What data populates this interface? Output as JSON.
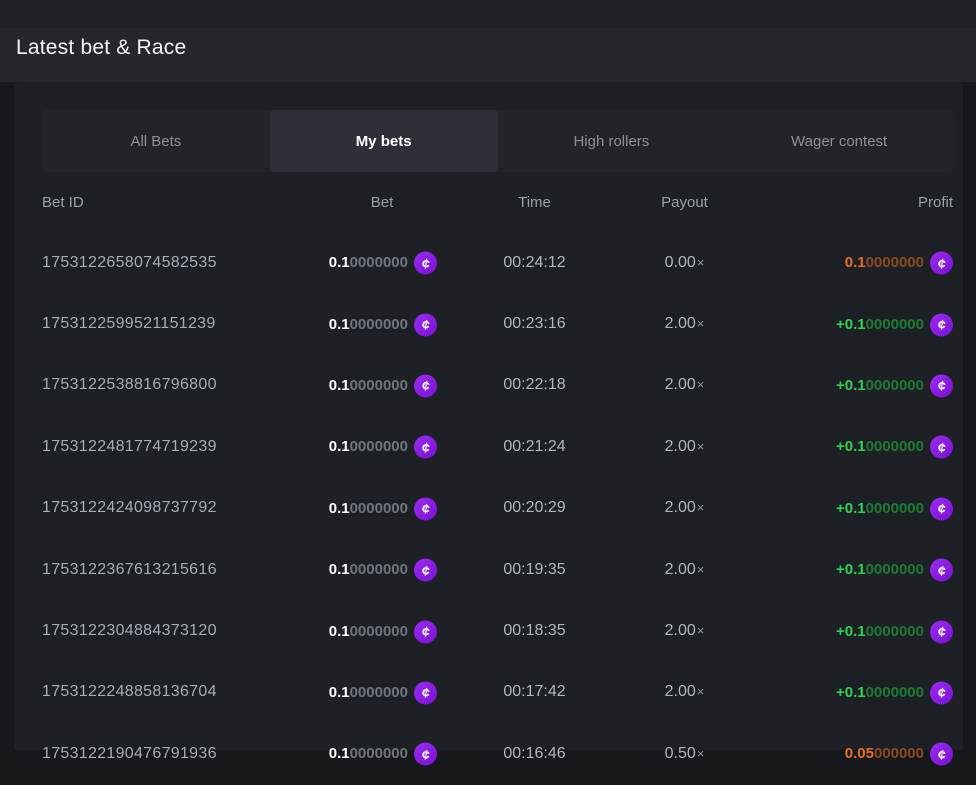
{
  "page": {
    "title": "Latest bet & Race"
  },
  "tabs": [
    {
      "label": "All Bets",
      "active": false
    },
    {
      "label": "My bets",
      "active": true
    },
    {
      "label": "High rollers",
      "active": false
    },
    {
      "label": "Wager contest",
      "active": false
    }
  ],
  "symbols": {
    "coin": "¢",
    "multiplier": "×"
  },
  "colors": {
    "coin_purple": "#8716dc",
    "win_green": "#31d14f",
    "win_green_dim": "#1e7c32",
    "loss_orange": "#e96d26",
    "loss_orange_dim": "#8c4a20",
    "card_bg": "#1d2024",
    "tabbar_bg": "#22242a",
    "active_tab_bg": "#2d3036"
  },
  "table": {
    "columns": [
      "Bet ID",
      "Bet",
      "Time",
      "Payout",
      "Profit"
    ],
    "rows": [
      {
        "bet_id": "1753122658074582535",
        "bet_bold": "0.1",
        "bet_dim": "0000000",
        "time": "00:24:12",
        "payout": "0.00",
        "profit_bold": "0.1",
        "profit_dim": "0000000",
        "profit_type": "loss"
      },
      {
        "bet_id": "1753122599521151239",
        "bet_bold": "0.1",
        "bet_dim": "0000000",
        "time": "00:23:16",
        "payout": "2.00",
        "profit_bold": "+0.1",
        "profit_dim": "0000000",
        "profit_type": "win"
      },
      {
        "bet_id": "1753122538816796800",
        "bet_bold": "0.1",
        "bet_dim": "0000000",
        "time": "00:22:18",
        "payout": "2.00",
        "profit_bold": "+0.1",
        "profit_dim": "0000000",
        "profit_type": "win"
      },
      {
        "bet_id": "1753122481774719239",
        "bet_bold": "0.1",
        "bet_dim": "0000000",
        "time": "00:21:24",
        "payout": "2.00",
        "profit_bold": "+0.1",
        "profit_dim": "0000000",
        "profit_type": "win"
      },
      {
        "bet_id": "1753122424098737792",
        "bet_bold": "0.1",
        "bet_dim": "0000000",
        "time": "00:20:29",
        "payout": "2.00",
        "profit_bold": "+0.1",
        "profit_dim": "0000000",
        "profit_type": "win"
      },
      {
        "bet_id": "1753122367613215616",
        "bet_bold": "0.1",
        "bet_dim": "0000000",
        "time": "00:19:35",
        "payout": "2.00",
        "profit_bold": "+0.1",
        "profit_dim": "0000000",
        "profit_type": "win"
      },
      {
        "bet_id": "1753122304884373120",
        "bet_bold": "0.1",
        "bet_dim": "0000000",
        "time": "00:18:35",
        "payout": "2.00",
        "profit_bold": "+0.1",
        "profit_dim": "0000000",
        "profit_type": "win"
      },
      {
        "bet_id": "1753122248858136704",
        "bet_bold": "0.1",
        "bet_dim": "0000000",
        "time": "00:17:42",
        "payout": "2.00",
        "profit_bold": "+0.1",
        "profit_dim": "0000000",
        "profit_type": "win"
      },
      {
        "bet_id": "1753122190476791936",
        "bet_bold": "0.1",
        "bet_dim": "0000000",
        "time": "00:16:46",
        "payout": "0.50",
        "profit_bold": "0.05",
        "profit_dim": "000000",
        "profit_type": "loss"
      }
    ]
  }
}
